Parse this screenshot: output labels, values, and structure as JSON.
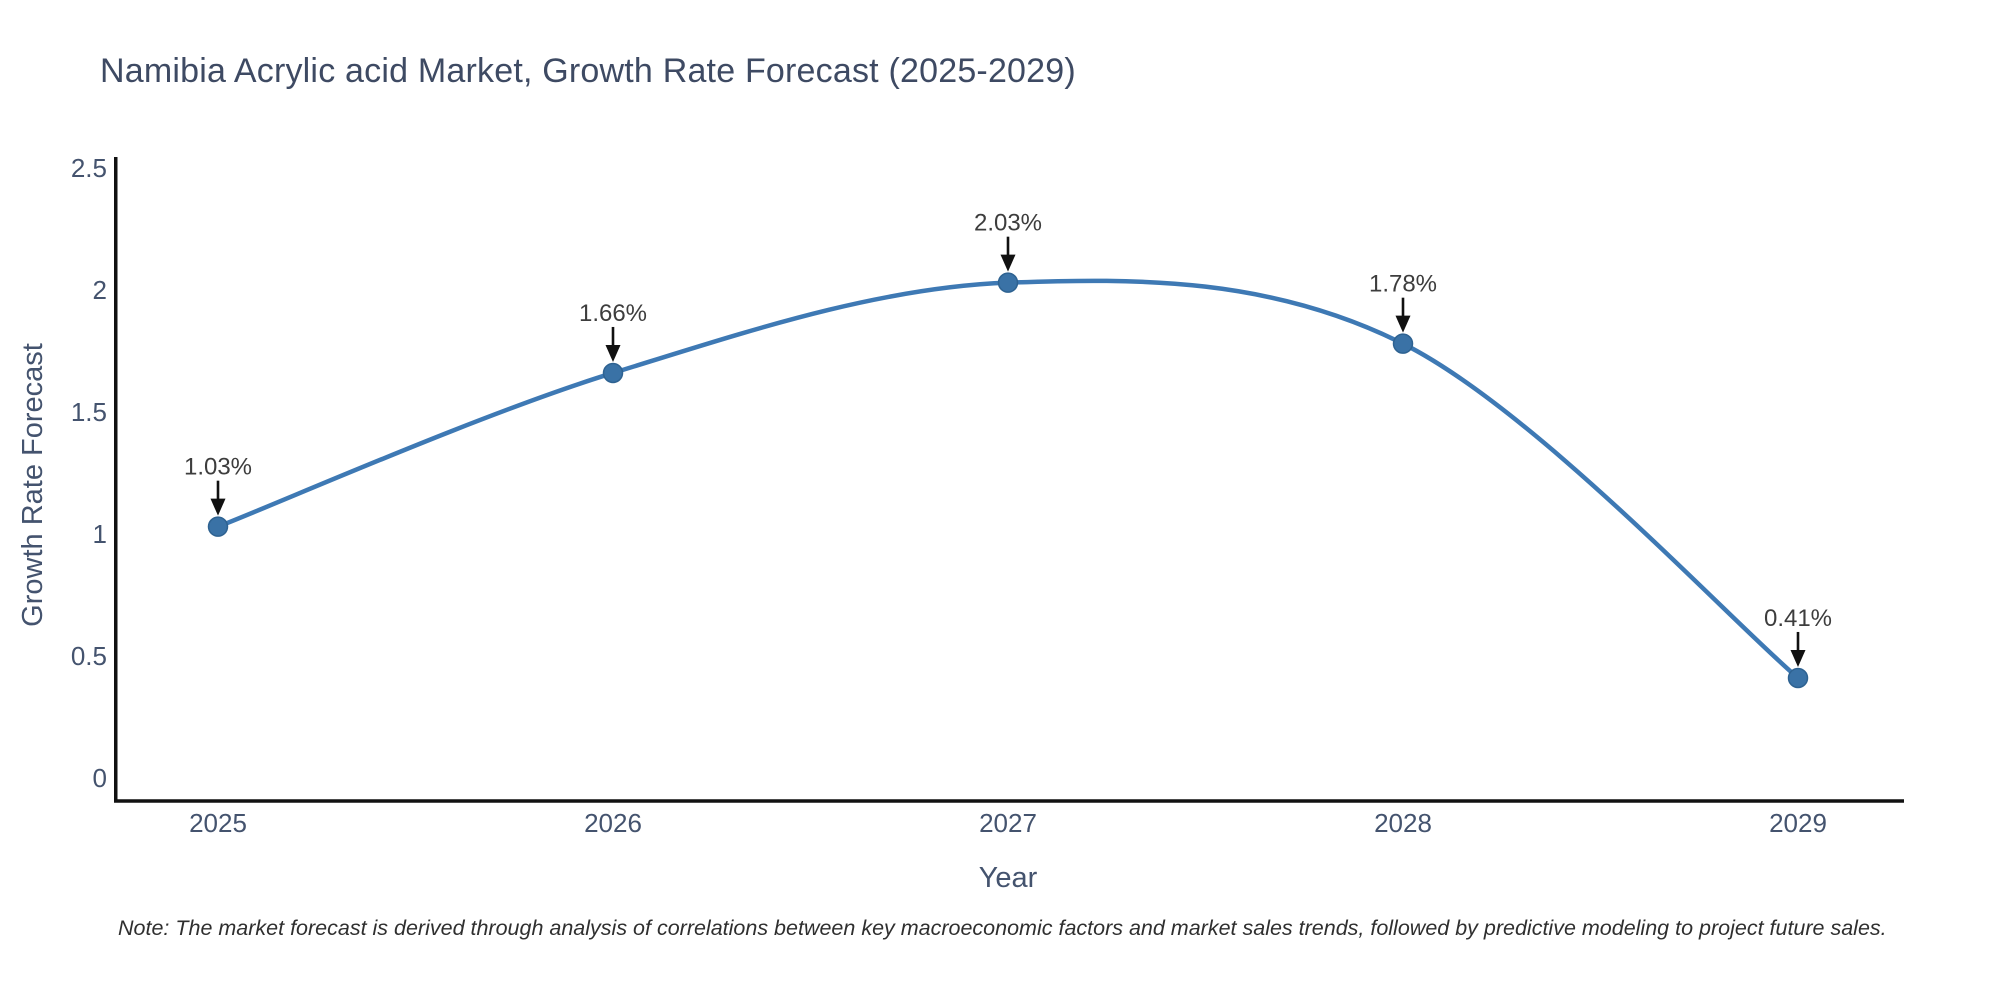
{
  "chart_data": {
    "type": "line",
    "title": "Namibia Acrylic acid Market, Growth Rate Forecast (2025-2029)",
    "xlabel": "Year",
    "ylabel": "Growth Rate Forecast",
    "series_name": "Growth Rate Forecast",
    "x": [
      2025,
      2026,
      2027,
      2028,
      2029
    ],
    "values": [
      1.03,
      1.66,
      2.03,
      1.78,
      0.41
    ],
    "point_labels": [
      "1.03%",
      "1.66%",
      "2.03%",
      "1.78%",
      "0.41%"
    ],
    "ylim": [
      0,
      2.5
    ],
    "yticks": [
      0,
      0.5,
      1,
      1.5,
      2,
      2.5
    ],
    "grid": false,
    "legend": "none",
    "curve": "spline",
    "line_color": "#3e79b4",
    "marker_color": "#3a72a6",
    "marker_edge_color": "#2e6291",
    "axis_color": "#111111",
    "tick_label_color": "#44536e",
    "title_color": "#3e4a63",
    "annotation_text_color": "#3d3d3d",
    "annotation_arrow_color": "#111111",
    "note": "Note: The market forecast is derived through analysis of correlations between key macroeconomic factors and market sales trends, followed by predictive modeling to project future sales."
  }
}
